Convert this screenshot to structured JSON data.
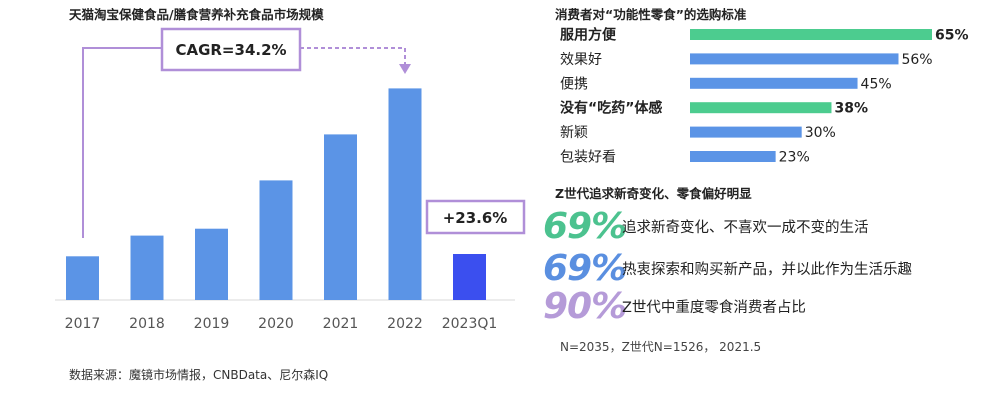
{
  "left_panel": {
    "title": "天猫淘宝保健食品/膳食营养补充食品市场规模",
    "cagr_label": "CAGR=34.2%",
    "growth_label": "+23.6%",
    "source": "数据来源：魔镜市场情报，CNBData、尼尔森IQ"
  },
  "right_panel": {
    "title": "消费者对“功能性零食”的选购标准",
    "gen_title": "Z世代追求新奇变化、零食偏好明显",
    "stats": [
      {
        "pct": "69%",
        "text": "追求新奇变化、不喜欢一成不变的生活",
        "color": "#4cc28f"
      },
      {
        "pct": "69%",
        "text": "热衷探索和购买新产品，并以此作为生活乐趣",
        "color": "#5a8fe0"
      },
      {
        "pct": "90%",
        "text": "Z世代中重度零食消费者占比",
        "color": "#b59bd8"
      }
    ],
    "note": "N=2035，Z世代N=1526， 2021.5"
  },
  "chart_data": [
    {
      "type": "bar",
      "title": "天猫淘宝保健食品/膳食营养补充食品市场规模",
      "categories": [
        "2017",
        "2018",
        "2019",
        "2020",
        "2021",
        "2022",
        "2023Q1"
      ],
      "values": [
        19,
        28,
        31,
        52,
        72,
        92,
        20
      ],
      "ylim": [
        0,
        100
      ],
      "colors": {
        "bar": "#5b94e6",
        "highlight": "#3b4fef",
        "annotation": "#b08fd8"
      },
      "annotations": [
        "CAGR=34.2%",
        "+23.6%"
      ]
    },
    {
      "type": "bar",
      "orientation": "horizontal",
      "title": "消费者对“功能性零食”的选购标准",
      "categories": [
        "服用方便",
        "效果好",
        "便携",
        "没有“吃药”体感",
        "新颖",
        "包装好看"
      ],
      "values": [
        65,
        56,
        45,
        38,
        30,
        23
      ],
      "value_labels": [
        "65%",
        "56%",
        "45%",
        "38%",
        "30%",
        "23%"
      ],
      "highlighted": [
        true,
        false,
        false,
        true,
        false,
        false
      ],
      "colors": {
        "bar": "#5b94e6",
        "highlight": "#4ccc8f"
      }
    }
  ]
}
